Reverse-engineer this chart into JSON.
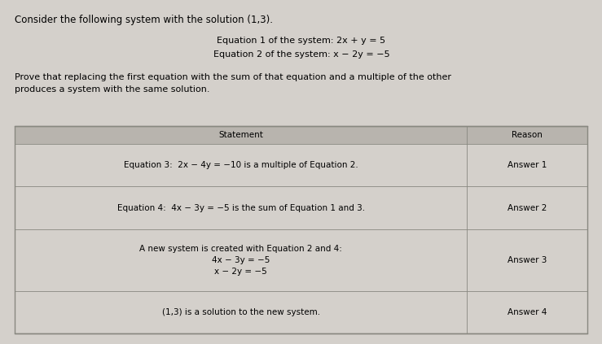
{
  "title_line": "Consider the following system with the solution (1,3).",
  "eq1_text": "Equation 1 of the system: 2x + y = 5",
  "eq2_text": "Equation 2 of the system: x − 2y = −5",
  "prove_text": "Prove that replacing the first equation with the sum of that equation and a multiple of the other\nproduces a system with the same solution.",
  "col_header_statement": "Statement",
  "col_header_reason": "Reason",
  "rows": [
    {
      "statement": "Equation 3:  2x − 4y = −10 is a multiple of Equation 2.",
      "reason": "Answer 1"
    },
    {
      "statement": "Equation 4:  4x − 3y = −5 is the sum of Equation 1 and 3.",
      "reason": "Answer 2"
    },
    {
      "statement": "A new system is created with Equation 2 and 4:\n4x − 3y = −5\nx − 2y = −5",
      "reason": "Answer 3"
    },
    {
      "statement": "(1,3) is a solution to the new system.",
      "reason": "Answer 4"
    }
  ],
  "bg_color": "#d4d0cb",
  "table_bg": "#d4d0cb",
  "header_bg": "#b8b4ae",
  "text_color": "#000000",
  "border_color": "#888880",
  "font_size_title": 8.5,
  "font_size_eq": 8.0,
  "font_size_prove": 8.0,
  "font_size_table": 7.5
}
